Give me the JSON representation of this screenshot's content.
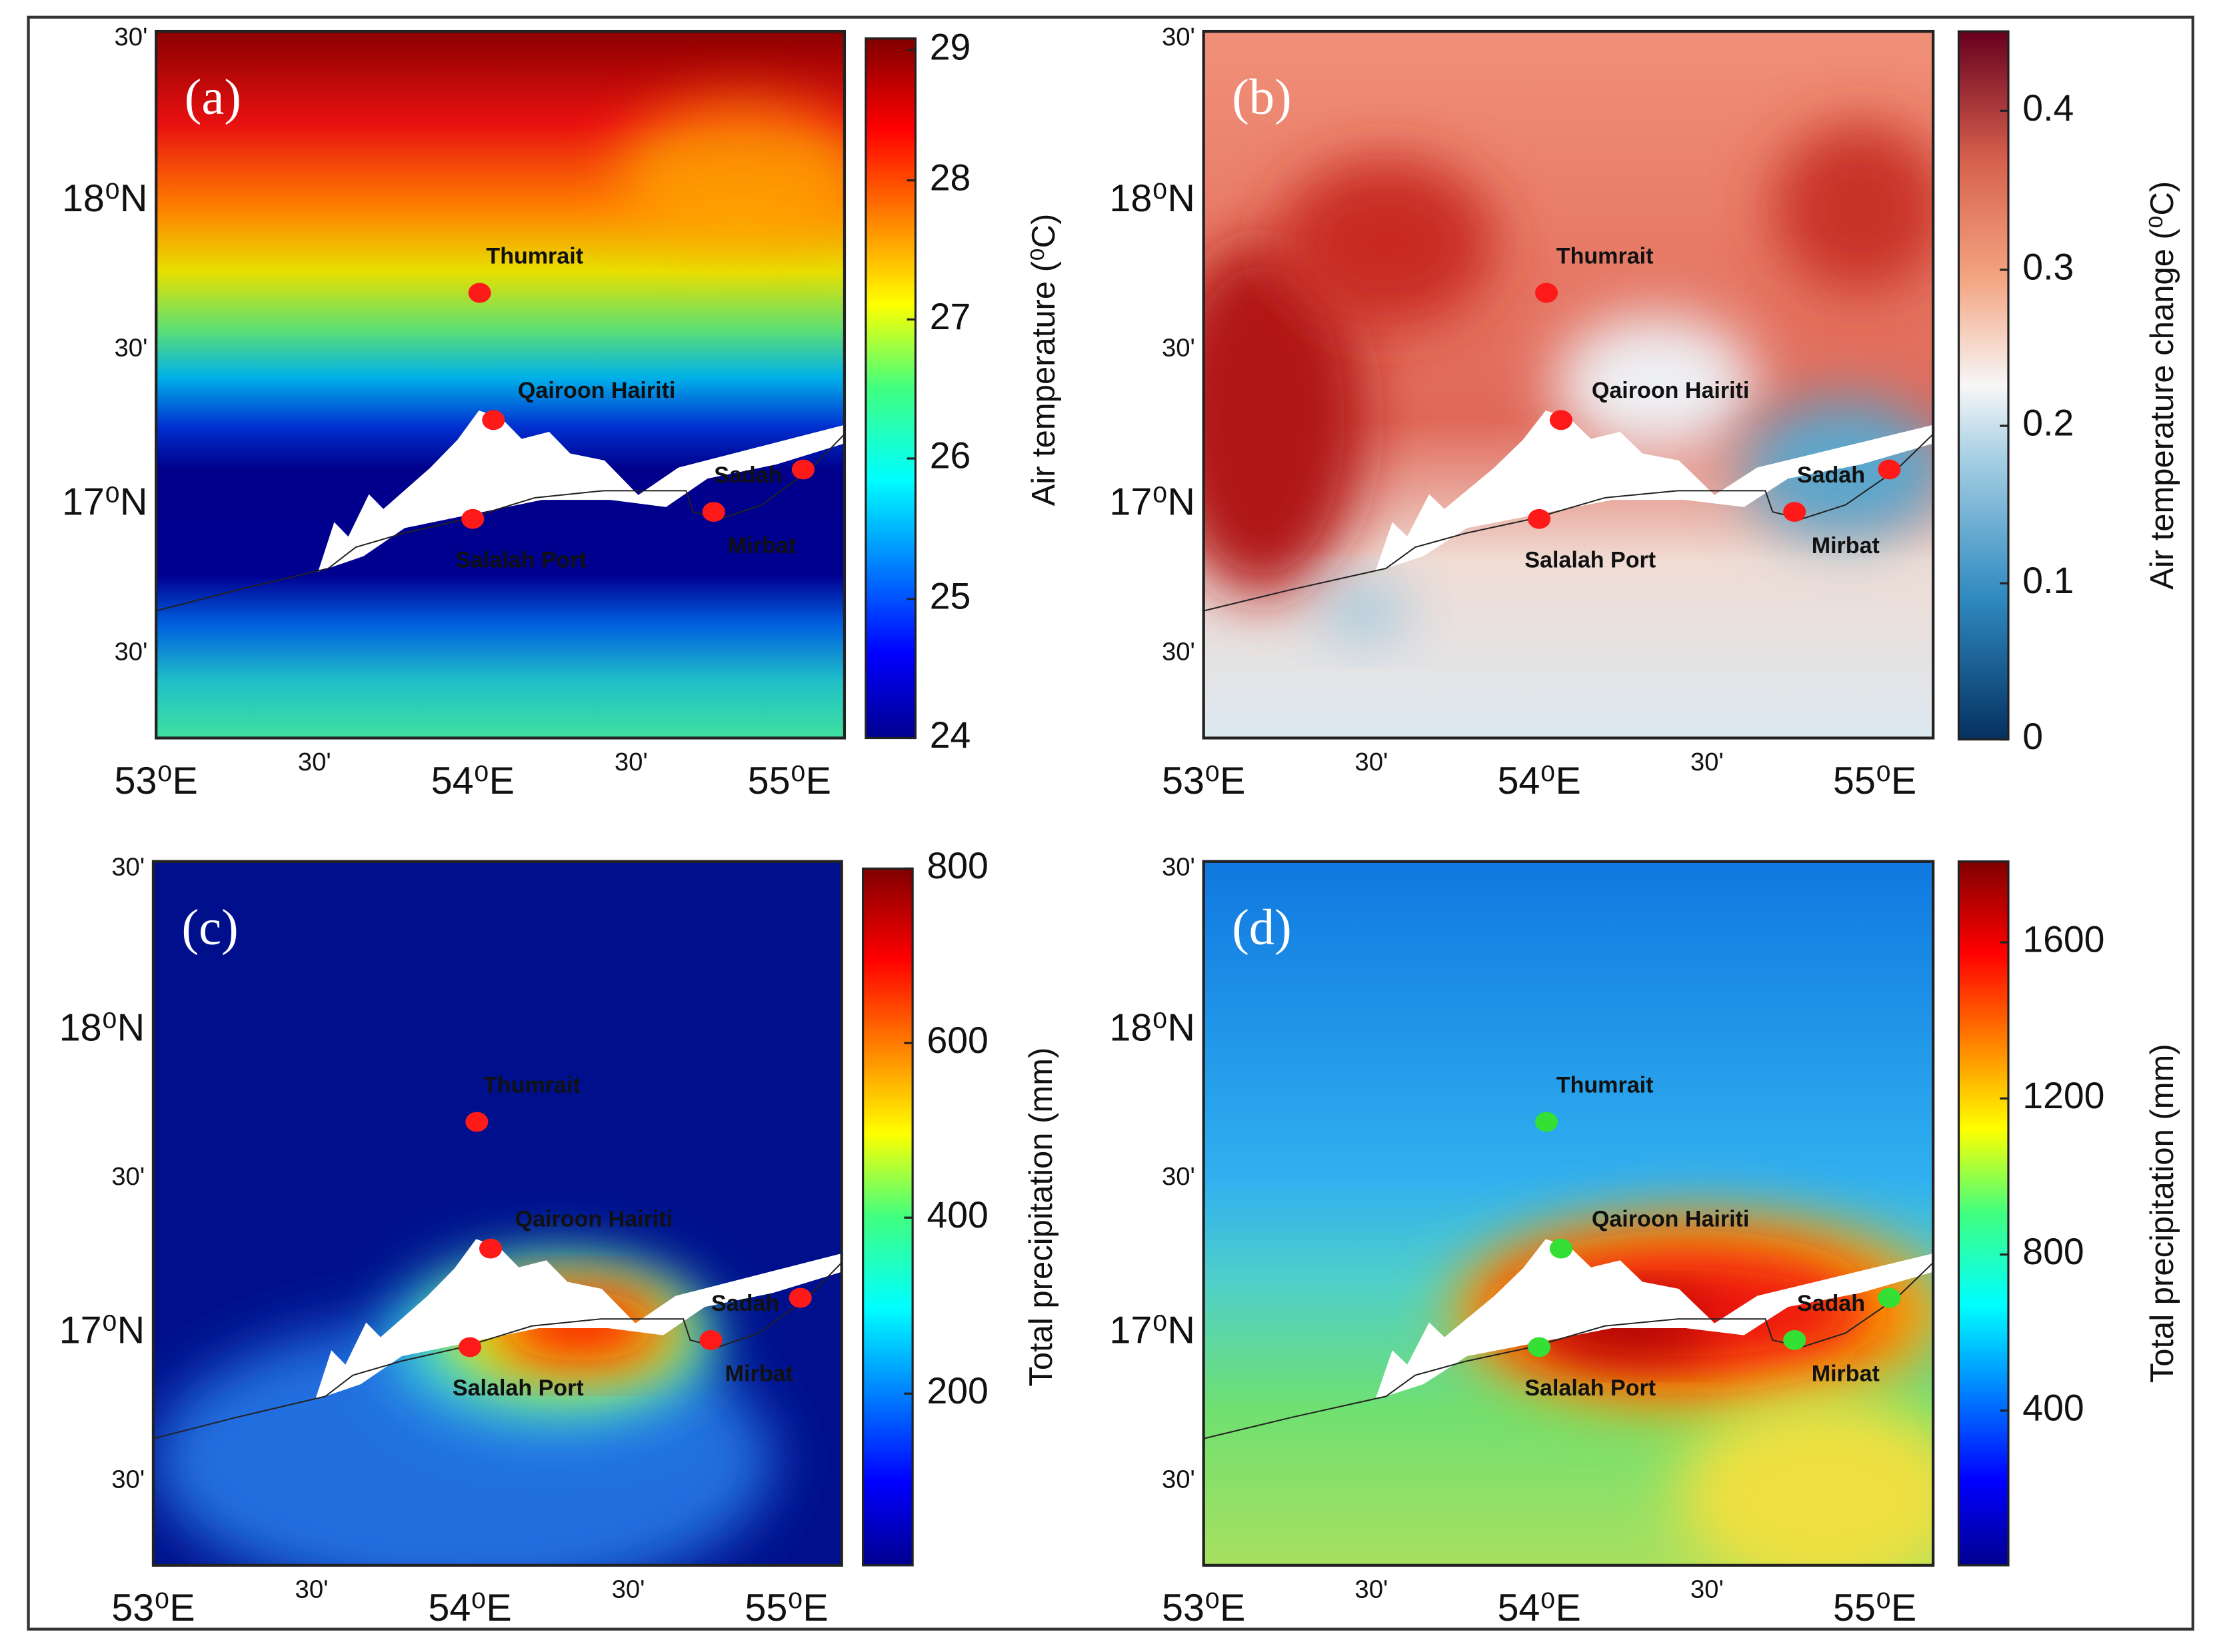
{
  "panels": [
    {
      "label": "(a)",
      "colorbar_label": "Air temperature (⁰C)",
      "colorbar_ticks": [
        29,
        28,
        27,
        26,
        25,
        24
      ],
      "places": [
        "Thumrait",
        "Qairoon Hairiti",
        "Sadah",
        "Mirbat",
        "Salalah Port"
      ],
      "marker_color": "#ff1a1a"
    },
    {
      "label": "(b)",
      "colorbar_label": "Air temperature change (⁰C)",
      "colorbar_ticks": [
        0.4,
        0.3,
        0.2,
        0.1,
        0
      ],
      "places": [
        "Thumrait",
        "Qairoon Hairiti",
        "Sadah",
        "Mirbat",
        "Salalah Port"
      ],
      "marker_color": "#ff1a1a"
    },
    {
      "label": "(c)",
      "colorbar_label": "Total precipitation (mm)",
      "colorbar_ticks": [
        800,
        600,
        400,
        200
      ],
      "places": [
        "Thumrait",
        "Qairoon Hairiti",
        "Sadah",
        "Mirbat",
        "Salalah Port"
      ],
      "marker_color": "#ff1a1a"
    },
    {
      "label": "(d)",
      "colorbar_label": "Total precipitation (mm)",
      "colorbar_ticks": [
        1600,
        1200,
        800,
        400
      ],
      "places": [
        "Thumrait",
        "Qairoon Hairiti",
        "Sadah",
        "Mirbat",
        "Salalah Port"
      ],
      "marker_color": "#33e033"
    }
  ],
  "x_labels": [
    "53⁰E",
    "30'",
    "54⁰E",
    "30'",
    "55⁰E"
  ],
  "y_labels": [
    "30'",
    "18⁰N",
    "30'",
    "17⁰N",
    "30'"
  ]
}
